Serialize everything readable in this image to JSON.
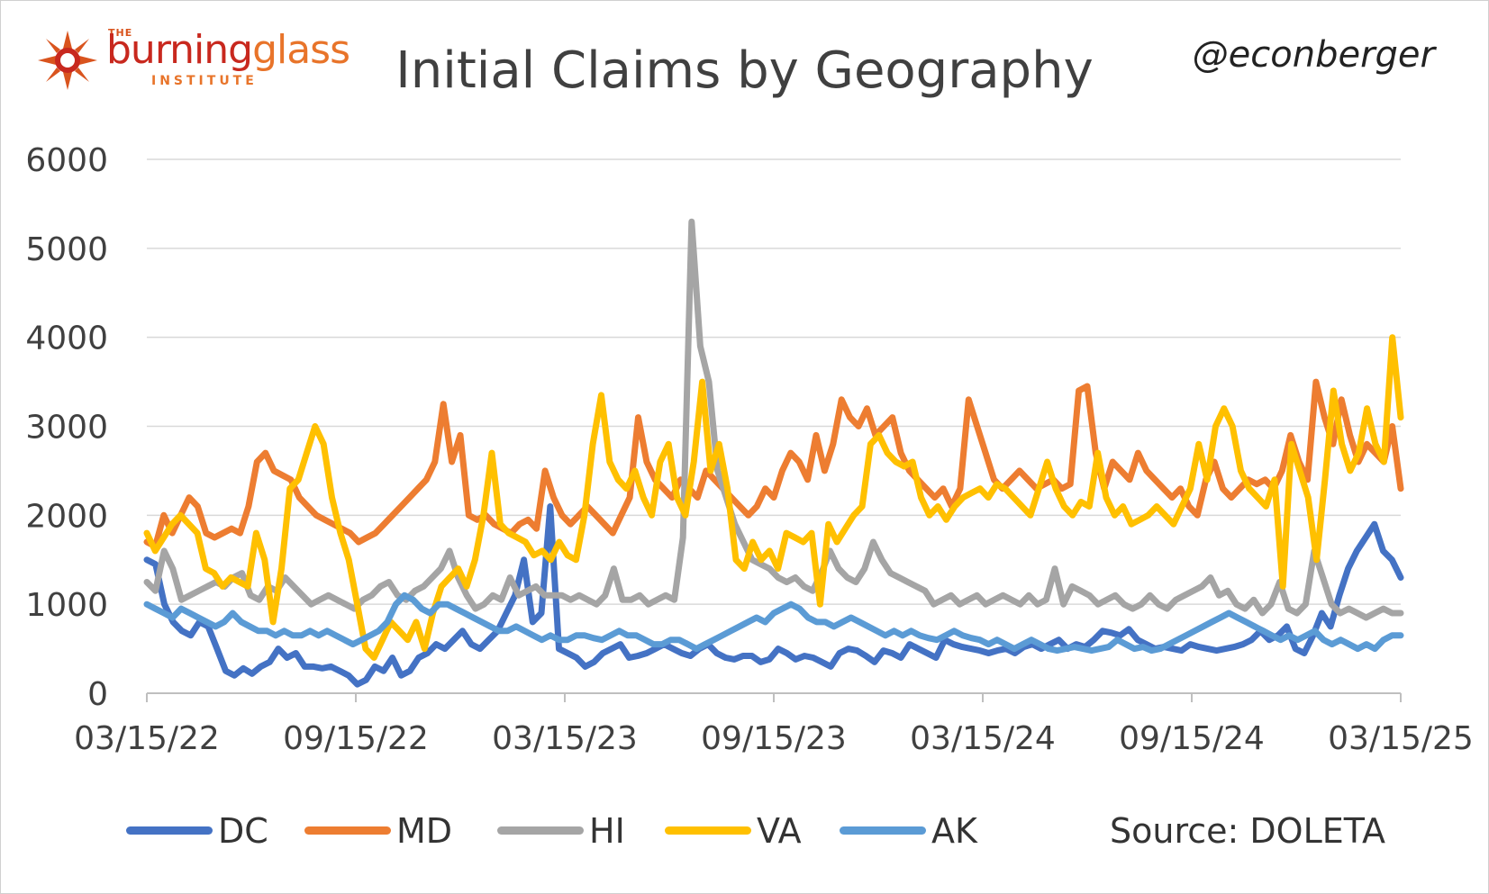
{
  "logo": {
    "the": "THE",
    "word_a": "burning",
    "word_b": "glass",
    "institute": "INSTITUTE",
    "colors": {
      "red": "#c8281e",
      "orange": "#e8742a"
    }
  },
  "title": "Initial Claims by Geography",
  "handle": "@econberger",
  "source": "Source: DOLETA",
  "chart_data": {
    "type": "line",
    "title": "Initial Claims by Geography",
    "xlabel": "",
    "ylabel": "",
    "ylim": [
      0,
      6000
    ],
    "yticks": [
      "0",
      "1000",
      "2000",
      "3000",
      "4000",
      "5000",
      "6000"
    ],
    "xticks": [
      "03/15/22",
      "09/15/22",
      "03/15/23",
      "09/15/23",
      "03/15/24",
      "09/15/24",
      "03/15/25"
    ],
    "grid": true,
    "legend": "bottom",
    "frequency": "weekly",
    "series": [
      {
        "name": "DC",
        "color": "#4472c4",
        "values": [
          1500,
          1450,
          1000,
          800,
          700,
          650,
          800,
          750,
          500,
          250,
          200,
          280,
          220,
          300,
          350,
          500,
          400,
          450,
          300,
          300,
          280,
          300,
          250,
          200,
          100,
          150,
          300,
          250,
          400,
          200,
          250,
          400,
          450,
          550,
          500,
          600,
          700,
          550,
          500,
          600,
          700,
          900,
          1100,
          1500,
          800,
          900,
          2100,
          500,
          450,
          400,
          300,
          350,
          450,
          500,
          550,
          400,
          420,
          450,
          500,
          550,
          500,
          450,
          420,
          500,
          550,
          450,
          400,
          380,
          420,
          420,
          350,
          380,
          500,
          450,
          380,
          420,
          400,
          350,
          300,
          450,
          500,
          480,
          420,
          350,
          480,
          450,
          400,
          550,
          500,
          450,
          400,
          600,
          550,
          520,
          500,
          480,
          450,
          480,
          500,
          450,
          520,
          550,
          500,
          550,
          600,
          500,
          550,
          520,
          600,
          700,
          680,
          650,
          720,
          600,
          550,
          500,
          520,
          500,
          480,
          550,
          520,
          500,
          480,
          500,
          520,
          550,
          600,
          700,
          600,
          650,
          750,
          500,
          450,
          650,
          900,
          750,
          1100,
          1400,
          1600,
          1750,
          1900,
          1600,
          1500,
          1300
        ]
      },
      {
        "name": "MD",
        "color": "#ed7d31",
        "values": [
          1700,
          1650,
          2000,
          1800,
          2000,
          2200,
          2100,
          1800,
          1750,
          1800,
          1850,
          1800,
          2100,
          2600,
          2700,
          2500,
          2450,
          2400,
          2200,
          2100,
          2000,
          1950,
          1900,
          1850,
          1800,
          1700,
          1750,
          1800,
          1900,
          2000,
          2100,
          2200,
          2300,
          2400,
          2600,
          3250,
          2600,
          2900,
          2000,
          1950,
          2000,
          1900,
          1850,
          1800,
          1900,
          1950,
          1850,
          2500,
          2200,
          2000,
          1900,
          2000,
          2100,
          2000,
          1900,
          1800,
          2000,
          2200,
          3100,
          2600,
          2400,
          2300,
          2200,
          2400,
          2300,
          2200,
          2500,
          2400,
          2300,
          2200,
          2100,
          2000,
          2100,
          2300,
          2200,
          2500,
          2700,
          2600,
          2400,
          2900,
          2500,
          2800,
          3300,
          3100,
          3000,
          3200,
          2900,
          3000,
          3100,
          2700,
          2500,
          2400,
          2300,
          2200,
          2300,
          2100,
          2300,
          3300,
          3000,
          2700,
          2400,
          2300,
          2400,
          2500,
          2400,
          2300,
          2350,
          2400,
          2300,
          2350,
          3400,
          3450,
          2700,
          2300,
          2600,
          2500,
          2400,
          2700,
          2500,
          2400,
          2300,
          2200,
          2300,
          2100,
          2000,
          2400,
          2600,
          2300,
          2200,
          2300,
          2400,
          2350,
          2400,
          2300,
          2500,
          2900,
          2600,
          2400,
          3500,
          3100,
          2800,
          3300,
          2900,
          2600,
          2800,
          2700,
          2600,
          3000,
          2300
        ]
      },
      {
        "name": "HI",
        "color": "#a5a5a5",
        "values": [
          1250,
          1150,
          1600,
          1400,
          1050,
          1100,
          1150,
          1200,
          1250,
          1200,
          1300,
          1350,
          1100,
          1050,
          1200,
          1150,
          1300,
          1200,
          1100,
          1000,
          1050,
          1100,
          1050,
          1000,
          950,
          1050,
          1100,
          1200,
          1250,
          1100,
          1050,
          1150,
          1200,
          1300,
          1400,
          1600,
          1300,
          1100,
          950,
          1000,
          1100,
          1050,
          1300,
          1100,
          1150,
          1200,
          1100,
          1100,
          1100,
          1050,
          1100,
          1050,
          1000,
          1100,
          1400,
          1050,
          1050,
          1100,
          1000,
          1050,
          1100,
          1050,
          1750,
          5300,
          3900,
          3500,
          2500,
          2200,
          1900,
          1700,
          1500,
          1450,
          1400,
          1300,
          1250,
          1300,
          1200,
          1150,
          1350,
          1600,
          1400,
          1300,
          1250,
          1400,
          1700,
          1500,
          1350,
          1300,
          1250,
          1200,
          1150,
          1000,
          1050,
          1100,
          1000,
          1050,
          1100,
          1000,
          1050,
          1100,
          1050,
          1000,
          1100,
          1000,
          1050,
          1400,
          1000,
          1200,
          1150,
          1100,
          1000,
          1050,
          1100,
          1000,
          950,
          1000,
          1100,
          1000,
          950,
          1050,
          1100,
          1150,
          1200,
          1300,
          1100,
          1150,
          1000,
          950,
          1050,
          900,
          1000,
          1250,
          950,
          900,
          1000,
          1600,
          1300,
          1000,
          900,
          950,
          900,
          850,
          900,
          950,
          900,
          900
        ]
      },
      {
        "name": "VA",
        "color": "#ffc000",
        "values": [
          1800,
          1600,
          1750,
          1900,
          2000,
          1900,
          1800,
          1400,
          1350,
          1200,
          1300,
          1250,
          1200,
          1800,
          1500,
          800,
          1400,
          2300,
          2400,
          2700,
          3000,
          2800,
          2200,
          1800,
          1500,
          1000,
          500,
          400,
          600,
          800,
          700,
          600,
          800,
          500,
          900,
          1200,
          1300,
          1400,
          1200,
          1500,
          2000,
          2700,
          1900,
          1800,
          1750,
          1700,
          1550,
          1600,
          1500,
          1700,
          1550,
          1500,
          2000,
          2800,
          3350,
          2600,
          2400,
          2300,
          2500,
          2200,
          2000,
          2600,
          2800,
          2200,
          2000,
          2600,
          3500,
          2500,
          2800,
          2300,
          1500,
          1400,
          1700,
          1500,
          1600,
          1400,
          1800,
          1750,
          1700,
          1800,
          1000,
          1900,
          1700,
          1850,
          2000,
          2100,
          2800,
          2900,
          2700,
          2600,
          2550,
          2600,
          2200,
          2000,
          2100,
          1950,
          2100,
          2200,
          2250,
          2300,
          2200,
          2350,
          2300,
          2200,
          2100,
          2000,
          2300,
          2600,
          2300,
          2100,
          2000,
          2150,
          2100,
          2700,
          2200,
          2000,
          2100,
          1900,
          1950,
          2000,
          2100,
          2000,
          1900,
          2100,
          2300,
          2800,
          2400,
          3000,
          3200,
          3000,
          2500,
          2300,
          2200,
          2100,
          2400,
          1200,
          2800,
          2500,
          2200,
          1500,
          2400,
          3400,
          2800,
          2500,
          2700,
          3200,
          2800,
          2600,
          4000,
          3100
        ]
      },
      {
        "name": "AK",
        "color": "#5b9bd5",
        "values": [
          1000,
          950,
          900,
          850,
          950,
          900,
          850,
          800,
          750,
          800,
          900,
          800,
          750,
          700,
          700,
          650,
          700,
          650,
          650,
          700,
          650,
          700,
          650,
          600,
          550,
          600,
          650,
          700,
          800,
          1000,
          1100,
          1050,
          950,
          900,
          1000,
          1000,
          950,
          900,
          850,
          800,
          750,
          700,
          700,
          750,
          700,
          650,
          600,
          650,
          600,
          600,
          650,
          650,
          620,
          600,
          650,
          700,
          650,
          650,
          600,
          550,
          550,
          600,
          600,
          550,
          500,
          550,
          600,
          650,
          700,
          750,
          800,
          850,
          800,
          900,
          950,
          1000,
          950,
          850,
          800,
          800,
          750,
          800,
          850,
          800,
          750,
          700,
          650,
          700,
          650,
          700,
          650,
          620,
          600,
          650,
          700,
          650,
          620,
          600,
          550,
          600,
          550,
          500,
          550,
          600,
          550,
          500,
          480,
          500,
          520,
          500,
          480,
          500,
          520,
          600,
          550,
          500,
          520,
          480,
          500,
          550,
          600,
          650,
          700,
          750,
          800,
          850,
          900,
          850,
          800,
          750,
          700,
          650,
          600,
          650,
          600,
          650,
          700,
          600,
          550,
          600,
          550,
          500,
          550,
          500,
          600,
          650,
          650
        ]
      }
    ]
  }
}
